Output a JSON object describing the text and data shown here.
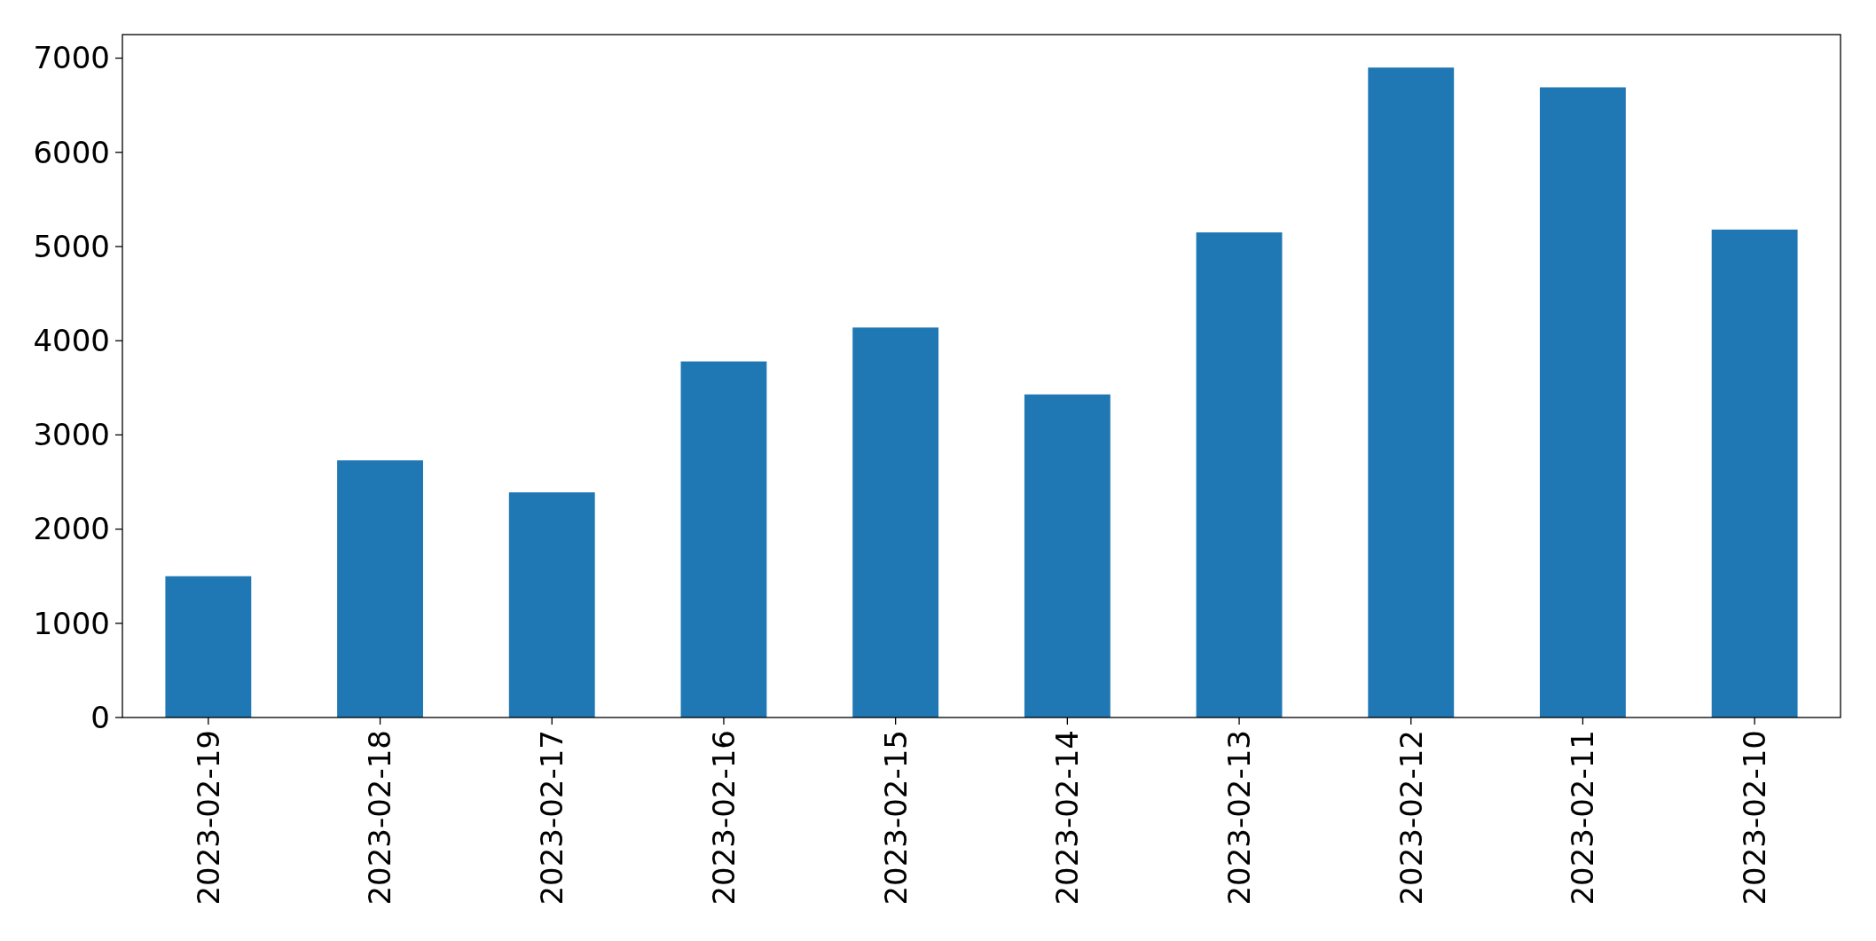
{
  "chart_data": {
    "type": "bar",
    "categories": [
      "2023-02-19",
      "2023-02-18",
      "2023-02-17",
      "2023-02-16",
      "2023-02-15",
      "2023-02-14",
      "2023-02-13",
      "2023-02-12",
      "2023-02-11",
      "2023-02-10"
    ],
    "values": [
      1500,
      2730,
      2390,
      3780,
      4140,
      3430,
      5150,
      6900,
      6690,
      5180
    ],
    "color": "#1f77b4",
    "ylim": [
      0,
      7250
    ],
    "yticks": [
      0,
      1000,
      2000,
      3000,
      4000,
      5000,
      6000,
      7000
    ],
    "grid": false
  }
}
